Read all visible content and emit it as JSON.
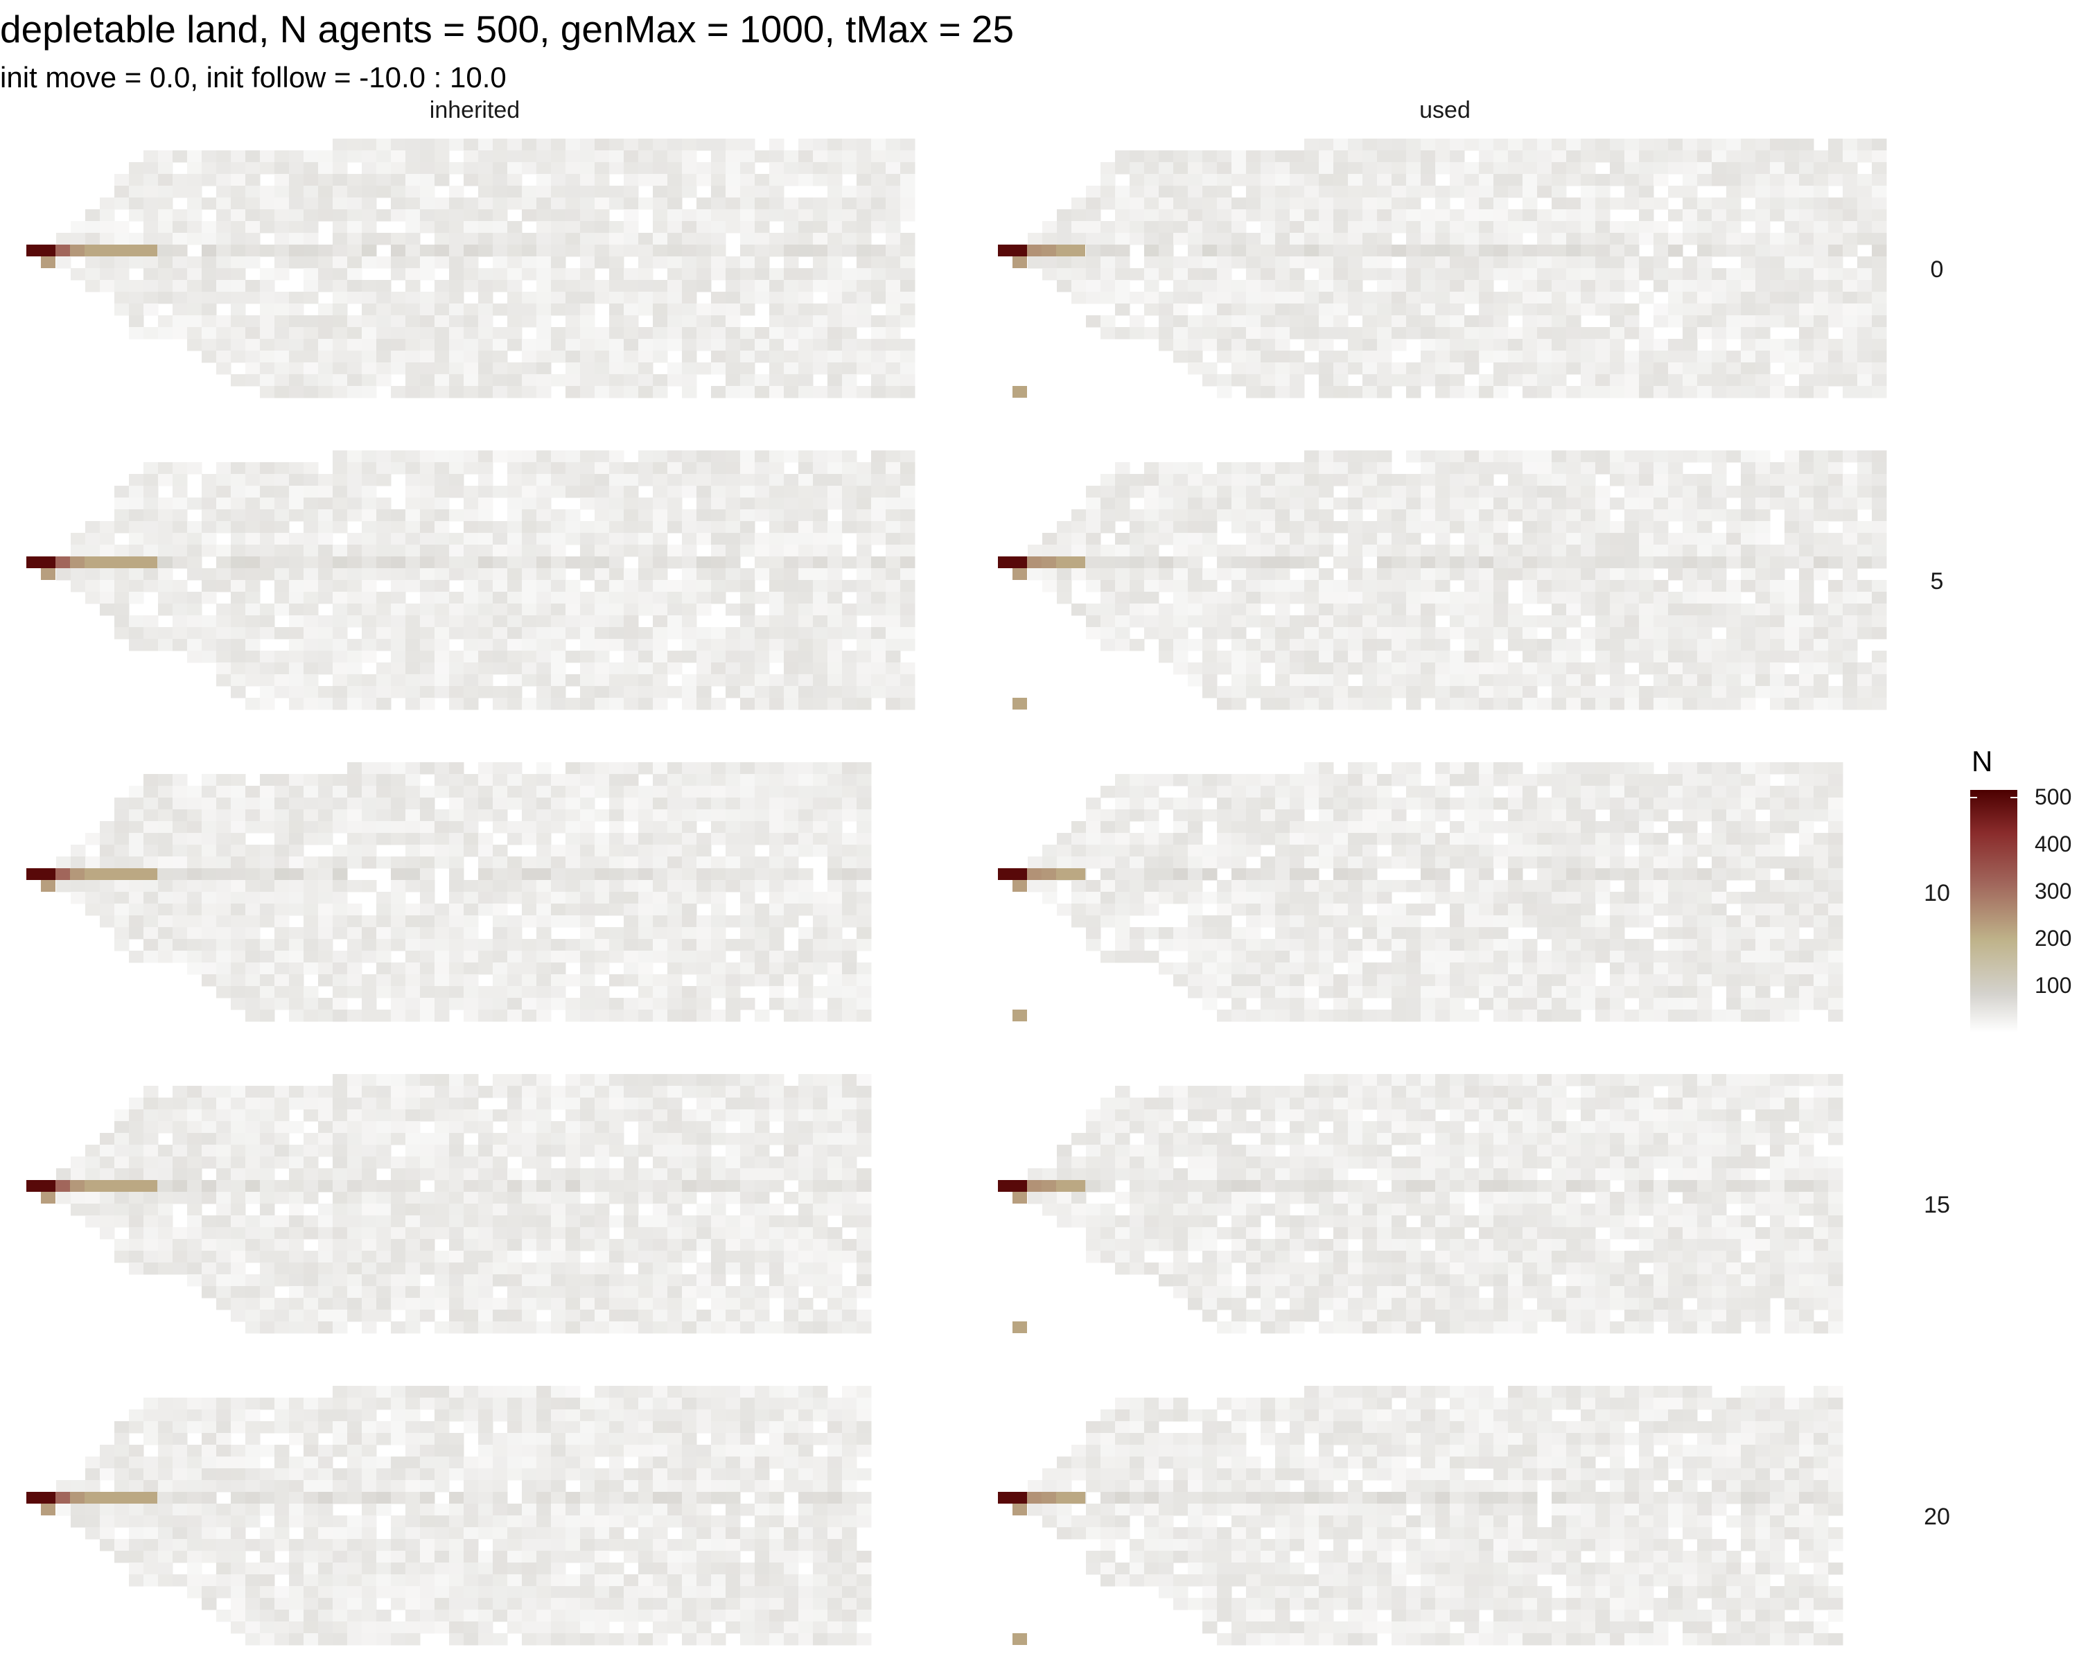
{
  "chart_data": {
    "type": "heatmap",
    "title": "depletable land, N agents = 500, genMax = 1000, tMax = 25",
    "subtitle": "init move = 0.0, init follow = -10.0 : 10.0",
    "facet_columns": [
      "inherited",
      "used"
    ],
    "facet_rows": [
      "0",
      "5",
      "10",
      "15",
      "20"
    ],
    "legend": {
      "title": "N",
      "ticks": [
        "100",
        "200",
        "300",
        "400",
        "500"
      ],
      "tick_values": [
        100,
        200,
        300,
        400,
        500
      ],
      "limits": [
        0,
        520
      ],
      "colors": [
        "#ffffff",
        "#d4d2cd",
        "#bfb38a",
        "#a0645a",
        "#8a2c2c",
        "#4b0000"
      ],
      "placement": "right"
    },
    "grid": false,
    "axes_visible": false,
    "note_values": {
      "dominant_cell_value": 500,
      "secondary_cell_value": 250,
      "background_cell_value_range": [
        10,
        90
      ]
    }
  }
}
